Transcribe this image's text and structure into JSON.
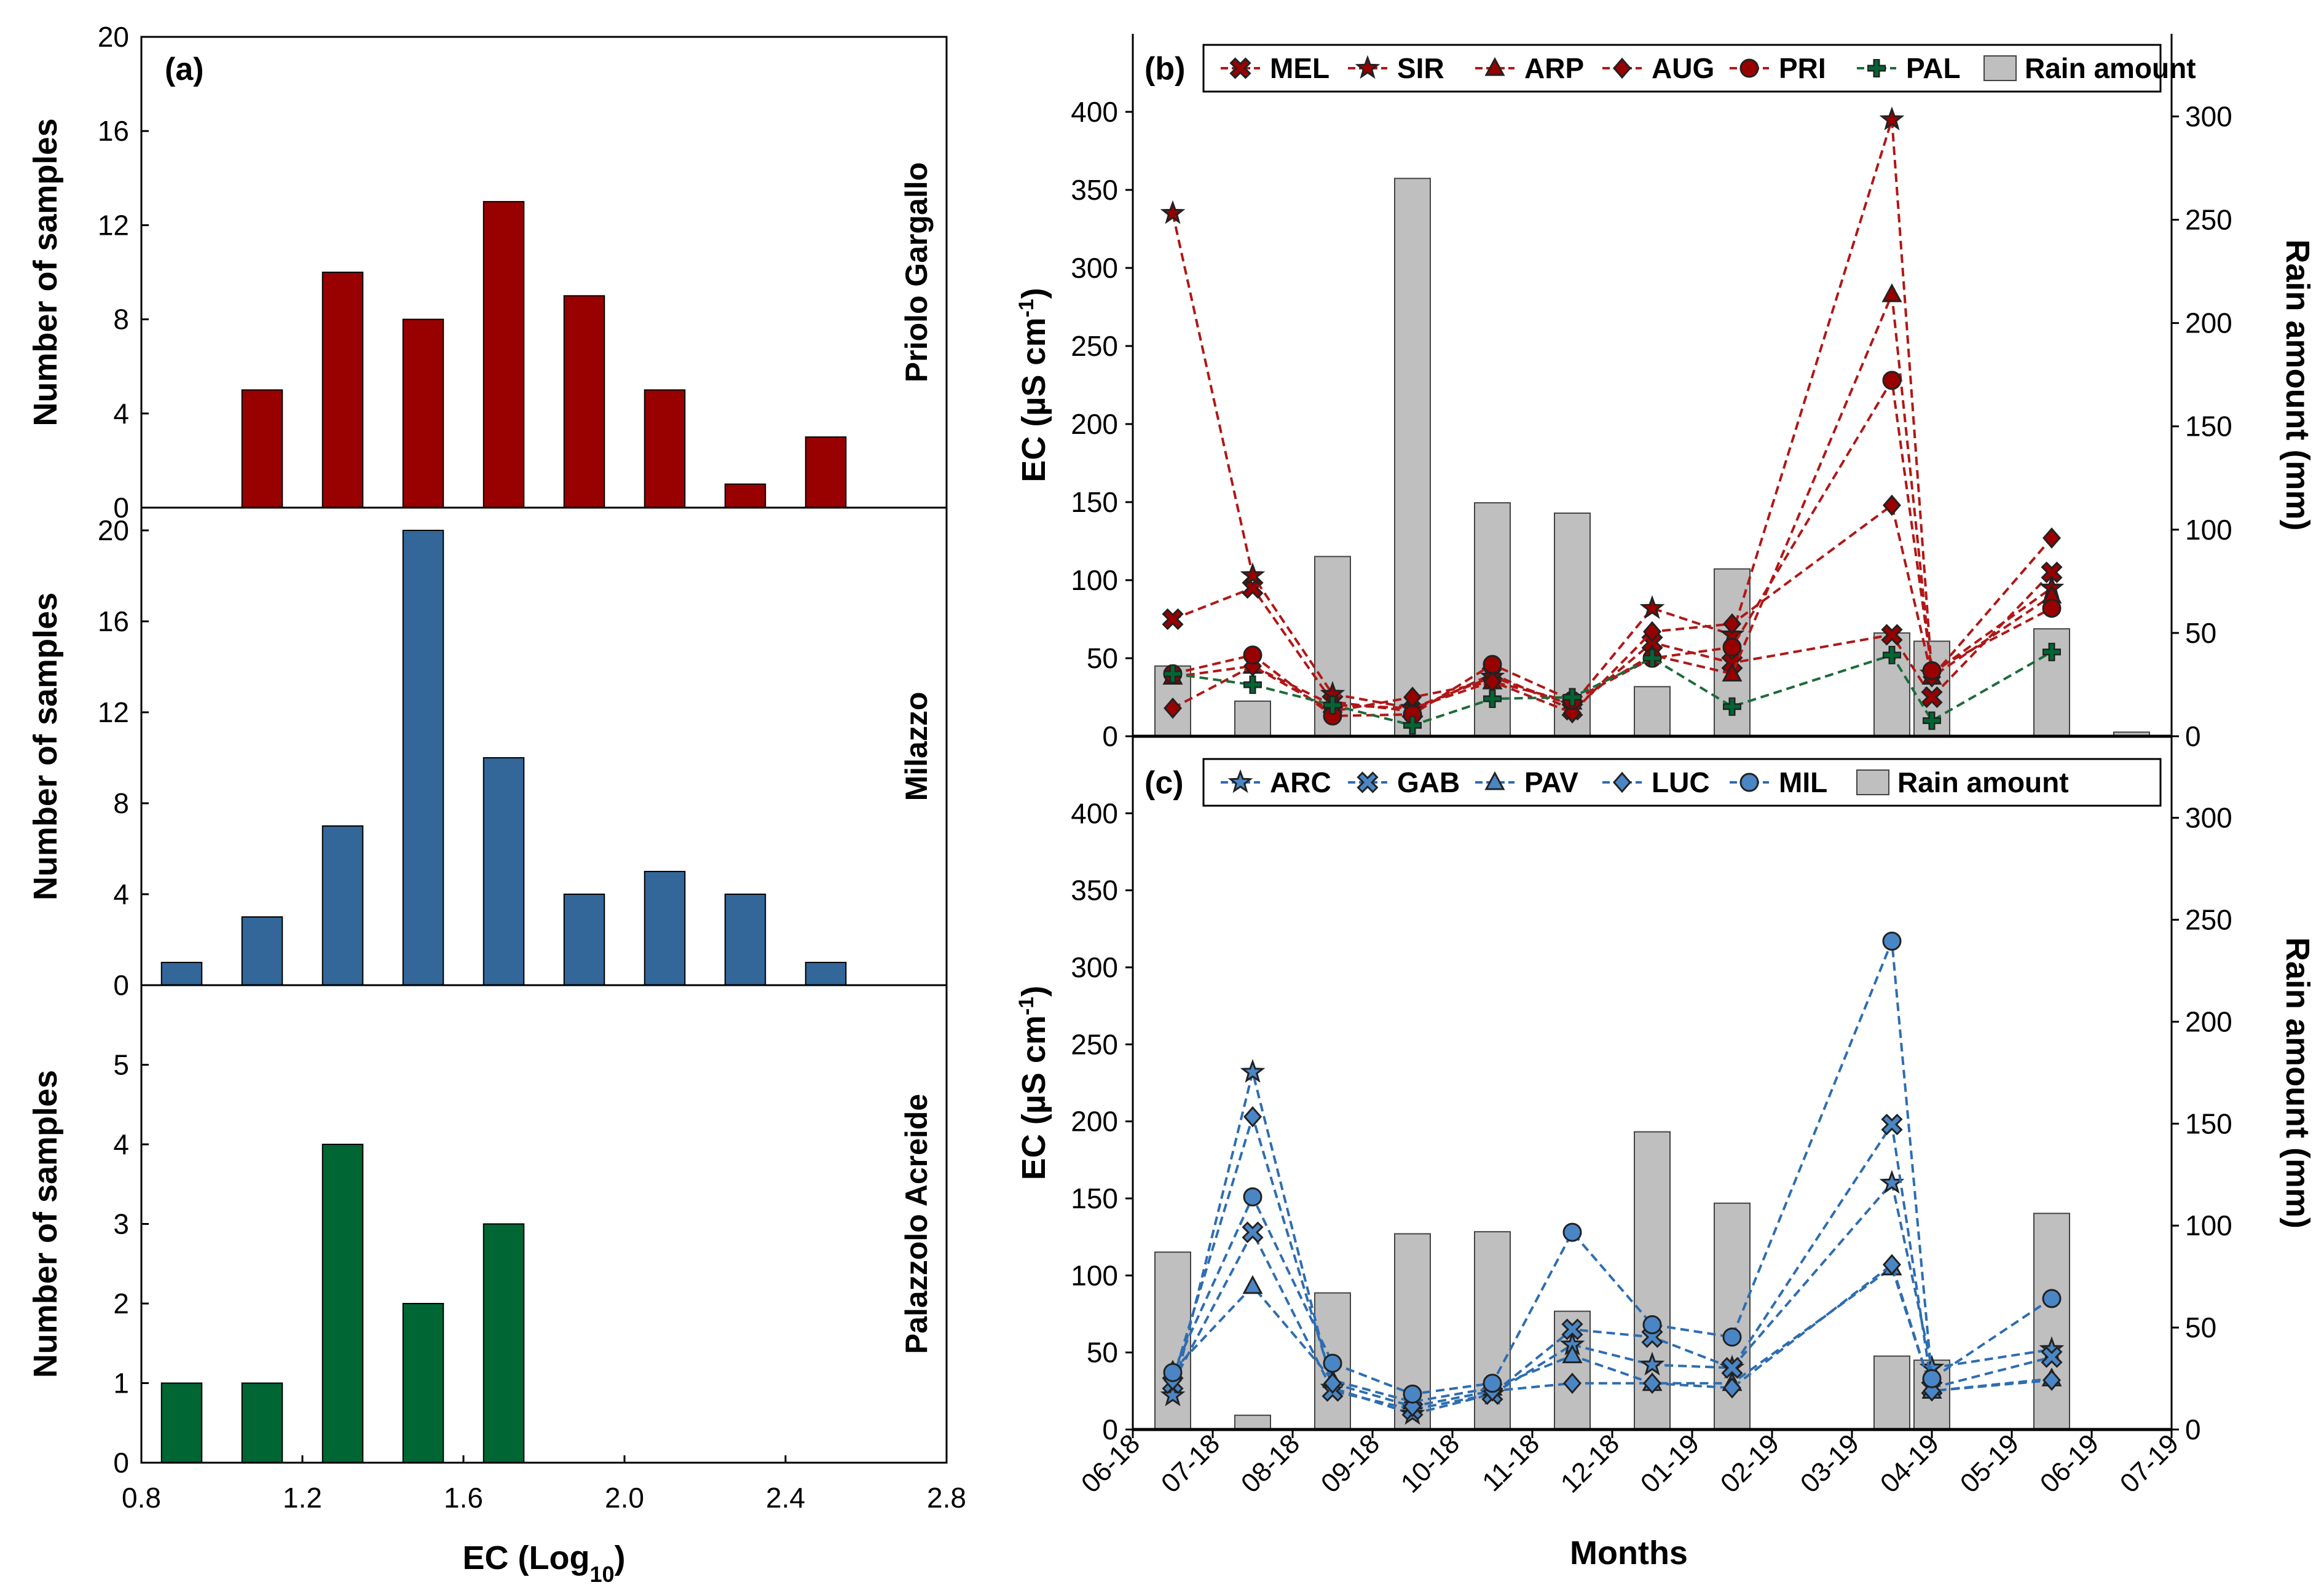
{
  "colors": {
    "priolo": "#990000",
    "milazzo": "#336699",
    "palazzolo": "#006633",
    "red_line": "#B01717",
    "green_line": "#1D6B3A",
    "blue_line": "#2E6DB0",
    "blue_marker": "#4A86C5",
    "rain_bar": "#BFBFBF"
  },
  "chart_data": [
    {
      "id": "a",
      "type": "bar",
      "panel_label": "(a)",
      "xlabel_main": "EC (Log",
      "xlabel_sub": "10",
      "xlabel_tail": ")",
      "xlim": [
        0.8,
        2.8
      ],
      "xticks": [
        "0.8",
        "1.2",
        "1.6",
        "2.0",
        "2.4",
        "2.8"
      ],
      "bin_width": 0.2,
      "ylabel": "Number of samples",
      "subplots": [
        {
          "site": "Priolo Gargallo",
          "ylim": [
            0,
            20
          ],
          "yticks": [
            "0",
            "4",
            "8",
            "12",
            "16",
            "20"
          ],
          "x": [
            1.1,
            1.3,
            1.5,
            1.7,
            1.9,
            2.1,
            2.3,
            2.5
          ],
          "values": [
            5,
            10,
            8,
            13,
            9,
            5,
            1,
            3
          ]
        },
        {
          "site": "Milazzo",
          "ylim": [
            0,
            21
          ],
          "yticks": [
            "0",
            "4",
            "8",
            "12",
            "16",
            "20"
          ],
          "x": [
            0.9,
            1.1,
            1.3,
            1.5,
            1.7,
            1.9,
            2.1,
            2.3,
            2.5
          ],
          "values": [
            1,
            3,
            7,
            20,
            10,
            4,
            5,
            4,
            1
          ]
        },
        {
          "site": "Palazzolo Acreide",
          "ylim": [
            0,
            6
          ],
          "yticks": [
            "0",
            "1",
            "2",
            "3",
            "4",
            "5"
          ],
          "x": [
            0.9,
            1.1,
            1.3,
            1.5,
            1.7
          ],
          "values": [
            1,
            1,
            4,
            2,
            3
          ]
        }
      ]
    },
    {
      "id": "b",
      "type": "line",
      "panel_label": "(b)",
      "ylabel": "EC (µS cm",
      "ylabel_sup": "-1",
      "ylabel_tail": ")",
      "y2label": "Rain amount (mm)",
      "ylim": [
        0,
        450
      ],
      "yticks": [
        "0",
        "50",
        "100",
        "150",
        "200",
        "250",
        "300",
        "350",
        "400"
      ],
      "y2lim": [
        0,
        340
      ],
      "y2ticks": [
        "0",
        "50",
        "100",
        "150",
        "200",
        "250",
        "300"
      ],
      "rain_x": [
        0.5,
        1.5,
        2.5,
        3.5,
        4.5,
        5.5,
        6.5,
        7.5,
        9.5,
        10.0,
        11.5,
        12.5
      ],
      "rain": [
        34,
        17,
        87,
        270,
        113,
        108,
        24,
        81,
        50,
        46,
        52,
        2
      ],
      "series": [
        {
          "name": "MEL",
          "marker": "x",
          "x": [
            0.5,
            1.5,
            2.5,
            3.5,
            4.5,
            5.5,
            6.5,
            7.5,
            9.5,
            10.0,
            11.5
          ],
          "values": [
            75,
            95,
            22,
            16,
            40,
            17,
            60,
            47,
            65,
            25,
            105
          ]
        },
        {
          "name": "SIR",
          "marker": "star",
          "x": [
            0.5,
            1.5,
            2.5,
            3.5,
            4.5,
            5.5,
            6.5,
            7.5,
            9.5,
            10.0,
            11.5
          ],
          "values": [
            335,
            103,
            27,
            18,
            38,
            20,
            82,
            65,
            395,
            40,
            95
          ]
        },
        {
          "name": "ARP",
          "marker": "triangle",
          "x": [
            0.5,
            1.5,
            2.5,
            3.5,
            4.5,
            5.5,
            6.5,
            7.5,
            9.5,
            10.0,
            11.5
          ],
          "values": [
            38,
            45,
            20,
            18,
            35,
            22,
            52,
            40,
            283,
            38,
            90
          ]
        },
        {
          "name": "AUG",
          "marker": "diamond",
          "x": [
            0.5,
            1.5,
            2.5,
            3.5,
            4.5,
            5.5,
            6.5,
            7.5,
            9.5,
            10.0,
            11.5
          ],
          "values": [
            18,
            45,
            16,
            25,
            35,
            15,
            67,
            72,
            148,
            38,
            127
          ]
        },
        {
          "name": "PRI",
          "marker": "circle",
          "x": [
            0.5,
            1.5,
            2.5,
            3.5,
            4.5,
            5.5,
            6.5,
            7.5,
            9.5,
            10.0,
            11.5
          ],
          "values": [
            40,
            52,
            13,
            14,
            46,
            23,
            50,
            57,
            228,
            42,
            82
          ]
        },
        {
          "name": "PAL",
          "marker": "plus",
          "x": [
            0.5,
            1.5,
            2.5,
            3.5,
            4.5,
            5.5,
            6.5,
            7.5,
            9.5,
            10.0,
            11.5
          ],
          "values": [
            40,
            33,
            20,
            7,
            24,
            25,
            50,
            19,
            52,
            10,
            54
          ]
        }
      ],
      "legend": [
        "MEL",
        "SIR",
        "ARP",
        "AUG",
        "PRI",
        "PAL",
        "Rain amount"
      ]
    },
    {
      "id": "c",
      "type": "line",
      "panel_label": "(c)",
      "xlabel": "Months",
      "ylabel": "EC (µS cm",
      "ylabel_sup": "-1",
      "ylabel_tail": ")",
      "y2label": "Rain amount (mm)",
      "ylim": [
        0,
        450
      ],
      "yticks": [
        "0",
        "50",
        "100",
        "150",
        "200",
        "250",
        "300",
        "350",
        "400"
      ],
      "y2lim": [
        0,
        340
      ],
      "y2ticks": [
        "0",
        "50",
        "100",
        "150",
        "200",
        "250",
        "300"
      ],
      "categories": [
        "06-18",
        "07-18",
        "08-18",
        "09-18",
        "10-18",
        "11-18",
        "12-18",
        "01-19",
        "02-19",
        "03-19",
        "04-19",
        "05-19",
        "06-19",
        "07-19"
      ],
      "rain_x": [
        0.5,
        1.5,
        2.5,
        3.5,
        4.5,
        5.5,
        6.5,
        7.5,
        9.5,
        10.0,
        11.5
      ],
      "rain": [
        87,
        7,
        67,
        96,
        97,
        58,
        146,
        111,
        36,
        34,
        106
      ],
      "series": [
        {
          "name": "ARC",
          "marker": "star",
          "x": [
            0.5,
            1.5,
            2.5,
            3.5,
            4.5,
            5.5,
            6.5,
            7.5,
            9.5,
            10.0,
            11.5
          ],
          "values": [
            22,
            232,
            27,
            10,
            23,
            55,
            42,
            40,
            160,
            40,
            52
          ]
        },
        {
          "name": "GAB",
          "marker": "x",
          "x": [
            0.5,
            1.5,
            2.5,
            3.5,
            4.5,
            5.5,
            6.5,
            7.5,
            9.5,
            10.0,
            11.5
          ],
          "values": [
            30,
            128,
            25,
            13,
            23,
            65,
            60,
            40,
            198,
            27,
            47
          ]
        },
        {
          "name": "PAV",
          "marker": "triangle",
          "x": [
            0.5,
            1.5,
            2.5,
            3.5,
            4.5,
            5.5,
            6.5,
            7.5,
            9.5,
            10.0,
            11.5
          ],
          "values": [
            38,
            93,
            32,
            18,
            27,
            48,
            30,
            30,
            105,
            25,
            33
          ]
        },
        {
          "name": "LUC",
          "marker": "diamond",
          "x": [
            0.5,
            1.5,
            2.5,
            3.5,
            4.5,
            5.5,
            6.5,
            7.5,
            9.5,
            10.0,
            11.5
          ],
          "values": [
            32,
            203,
            30,
            15,
            25,
            30,
            30,
            27,
            107,
            25,
            32
          ]
        },
        {
          "name": "MIL",
          "marker": "circle",
          "x": [
            0.5,
            1.5,
            2.5,
            3.5,
            4.5,
            5.5,
            6.5,
            7.5,
            9.5,
            10.0,
            11.5
          ],
          "values": [
            37,
            151,
            43,
            23,
            30,
            128,
            68,
            60,
            317,
            33,
            85
          ]
        }
      ],
      "legend": [
        "ARC",
        "GAB",
        "PAV",
        "LUC",
        "MIL",
        "Rain amount"
      ]
    }
  ]
}
